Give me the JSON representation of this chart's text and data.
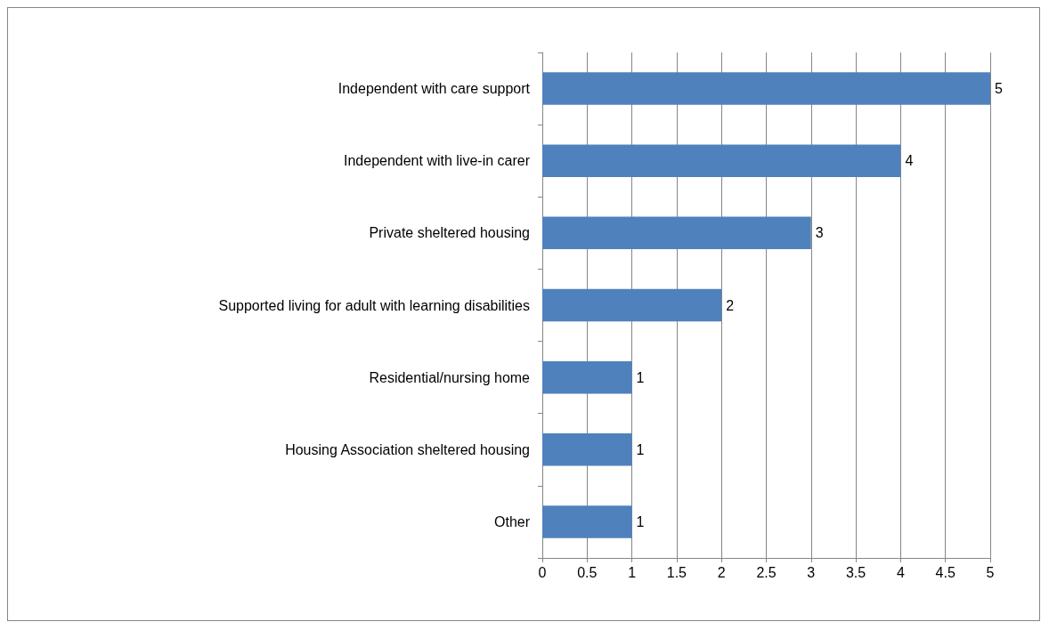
{
  "chart_data": {
    "type": "bar",
    "orientation": "horizontal",
    "categories": [
      "Independent with care support",
      "Independent with live-in carer",
      "Private sheltered housing",
      "Supported living for adult with learning disabilities",
      "Residential/nursing home",
      "Housing Association sheltered housing",
      "Other"
    ],
    "values": [
      5,
      4,
      3,
      2,
      1,
      1,
      1
    ],
    "color": "#4f81bd",
    "xlim": [
      0,
      5
    ],
    "xticks": [
      0,
      0.5,
      1,
      1.5,
      2,
      2.5,
      3,
      3.5,
      4,
      4.5,
      5
    ],
    "grid": "x",
    "data_labels": true
  }
}
